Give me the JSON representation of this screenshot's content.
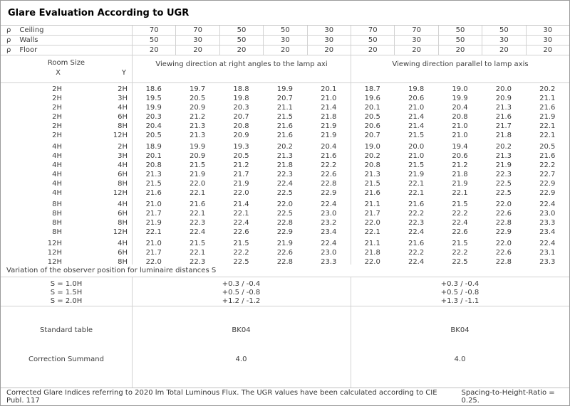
{
  "title": "Glare Evaluation According to UGR",
  "reflectances": {
    "rho_symbol": "ρ",
    "rows": [
      {
        "label": "Ceiling",
        "values": [
          "70",
          "70",
          "50",
          "50",
          "30",
          "70",
          "70",
          "50",
          "50",
          "30"
        ]
      },
      {
        "label": "Walls",
        "values": [
          "50",
          "30",
          "50",
          "30",
          "30",
          "50",
          "30",
          "50",
          "30",
          "30"
        ]
      },
      {
        "label": "Floor",
        "values": [
          "20",
          "20",
          "20",
          "20",
          "20",
          "20",
          "20",
          "20",
          "20",
          "20"
        ]
      }
    ]
  },
  "header": {
    "room_size": "Room Size",
    "x": "X",
    "y": "Y",
    "group_left": "Viewing direction at right angles to the lamp axi",
    "group_right": "Viewing direction parallel to lamp axis"
  },
  "ugr_table": {
    "sections": [
      {
        "rows": [
          {
            "x": "2H",
            "y": "2H",
            "left": [
              "18.6",
              "19.7",
              "18.8",
              "19.9",
              "20.1"
            ],
            "right": [
              "18.7",
              "19.8",
              "19.0",
              "20.0",
              "20.2"
            ]
          },
          {
            "x": "2H",
            "y": "3H",
            "left": [
              "19.5",
              "20.5",
              "19.8",
              "20.7",
              "21.0"
            ],
            "right": [
              "19.6",
              "20.6",
              "19.9",
              "20.9",
              "21.1"
            ]
          },
          {
            "x": "2H",
            "y": "4H",
            "left": [
              "19.9",
              "20.9",
              "20.3",
              "21.1",
              "21.4"
            ],
            "right": [
              "20.1",
              "21.0",
              "20.4",
              "21.3",
              "21.6"
            ]
          },
          {
            "x": "2H",
            "y": "6H",
            "left": [
              "20.3",
              "21.2",
              "20.7",
              "21.5",
              "21.8"
            ],
            "right": [
              "20.5",
              "21.4",
              "20.8",
              "21.6",
              "21.9"
            ]
          },
          {
            "x": "2H",
            "y": "8H",
            "left": [
              "20.4",
              "21.3",
              "20.8",
              "21.6",
              "21.9"
            ],
            "right": [
              "20.6",
              "21.4",
              "21.0",
              "21.7",
              "22.1"
            ]
          },
          {
            "x": "2H",
            "y": "12H",
            "left": [
              "20.5",
              "21.3",
              "20.9",
              "21.6",
              "21.9"
            ],
            "right": [
              "20.7",
              "21.5",
              "21.0",
              "21.8",
              "22.1"
            ]
          }
        ]
      },
      {
        "rows": [
          {
            "x": "4H",
            "y": "2H",
            "left": [
              "18.9",
              "19.9",
              "19.3",
              "20.2",
              "20.4"
            ],
            "right": [
              "19.0",
              "20.0",
              "19.4",
              "20.2",
              "20.5"
            ]
          },
          {
            "x": "4H",
            "y": "3H",
            "left": [
              "20.1",
              "20.9",
              "20.5",
              "21.3",
              "21.6"
            ],
            "right": [
              "20.2",
              "21.0",
              "20.6",
              "21.3",
              "21.6"
            ]
          },
          {
            "x": "4H",
            "y": "4H",
            "left": [
              "20.8",
              "21.5",
              "21.2",
              "21.8",
              "22.2"
            ],
            "right": [
              "20.8",
              "21.5",
              "21.2",
              "21.9",
              "22.2"
            ]
          },
          {
            "x": "4H",
            "y": "6H",
            "left": [
              "21.3",
              "21.9",
              "21.7",
              "22.3",
              "22.6"
            ],
            "right": [
              "21.3",
              "21.9",
              "21.8",
              "22.3",
              "22.7"
            ]
          },
          {
            "x": "4H",
            "y": "8H",
            "left": [
              "21.5",
              "22.0",
              "21.9",
              "22.4",
              "22.8"
            ],
            "right": [
              "21.5",
              "22.1",
              "21.9",
              "22.5",
              "22.9"
            ]
          },
          {
            "x": "4H",
            "y": "12H",
            "left": [
              "21.6",
              "22.1",
              "22.0",
              "22.5",
              "22.9"
            ],
            "right": [
              "21.6",
              "22.1",
              "22.1",
              "22.5",
              "22.9"
            ]
          }
        ]
      },
      {
        "rows": [
          {
            "x": "8H",
            "y": "4H",
            "left": [
              "21.0",
              "21.6",
              "21.4",
              "22.0",
              "22.4"
            ],
            "right": [
              "21.1",
              "21.6",
              "21.5",
              "22.0",
              "22.4"
            ]
          },
          {
            "x": "8H",
            "y": "6H",
            "left": [
              "21.7",
              "22.1",
              "22.1",
              "22.5",
              "23.0"
            ],
            "right": [
              "21.7",
              "22.2",
              "22.2",
              "22.6",
              "23.0"
            ]
          },
          {
            "x": "8H",
            "y": "8H",
            "left": [
              "21.9",
              "22.3",
              "22.4",
              "22.8",
              "23.2"
            ],
            "right": [
              "22.0",
              "22.3",
              "22.4",
              "22.8",
              "23.3"
            ]
          },
          {
            "x": "8H",
            "y": "12H",
            "left": [
              "22.1",
              "22.4",
              "22.6",
              "22.9",
              "23.4"
            ],
            "right": [
              "22.1",
              "22.4",
              "22.6",
              "22.9",
              "23.4"
            ]
          }
        ]
      },
      {
        "rows": [
          {
            "x": "12H",
            "y": "4H",
            "left": [
              "21.0",
              "21.5",
              "21.5",
              "21.9",
              "22.4"
            ],
            "right": [
              "21.1",
              "21.6",
              "21.5",
              "22.0",
              "22.4"
            ]
          },
          {
            "x": "12H",
            "y": "6H",
            "left": [
              "21.7",
              "22.1",
              "22.2",
              "22.6",
              "23.0"
            ],
            "right": [
              "21.8",
              "22.2",
              "22.2",
              "22.6",
              "23.1"
            ]
          },
          {
            "x": "12H",
            "y": "8H",
            "left": [
              "22.0",
              "22.3",
              "22.5",
              "22.8",
              "23.3"
            ],
            "right": [
              "22.0",
              "22.4",
              "22.5",
              "22.8",
              "23.3"
            ]
          }
        ]
      }
    ]
  },
  "variation": {
    "label": "Variation of the observer position for luminaire distances S",
    "rows": [
      {
        "s": "S = 1.0H",
        "left": "+0.3 / -0.4",
        "right": "+0.3 / -0.4"
      },
      {
        "s": "S = 1.5H",
        "left": "+0.5 / -0.8",
        "right": "+0.5 / -0.8"
      },
      {
        "s": "S = 2.0H",
        "left": "+1.2 / -1.2",
        "right": "+1.3 / -1.1"
      }
    ]
  },
  "summary": {
    "standard_table_label": "Standard table",
    "standard_table_left": "BK04",
    "standard_table_right": "BK04",
    "correction_label": "Correction Summand",
    "correction_left": "4.0",
    "correction_right": "4.0"
  },
  "footer": {
    "text1": "Corrected Glare Indices referring to 2020 lm Total Luminous Flux. The UGR values have been calculated according to CIE Publ. 117",
    "text2": "Spacing-to-Height-Ratio = 0.25."
  }
}
